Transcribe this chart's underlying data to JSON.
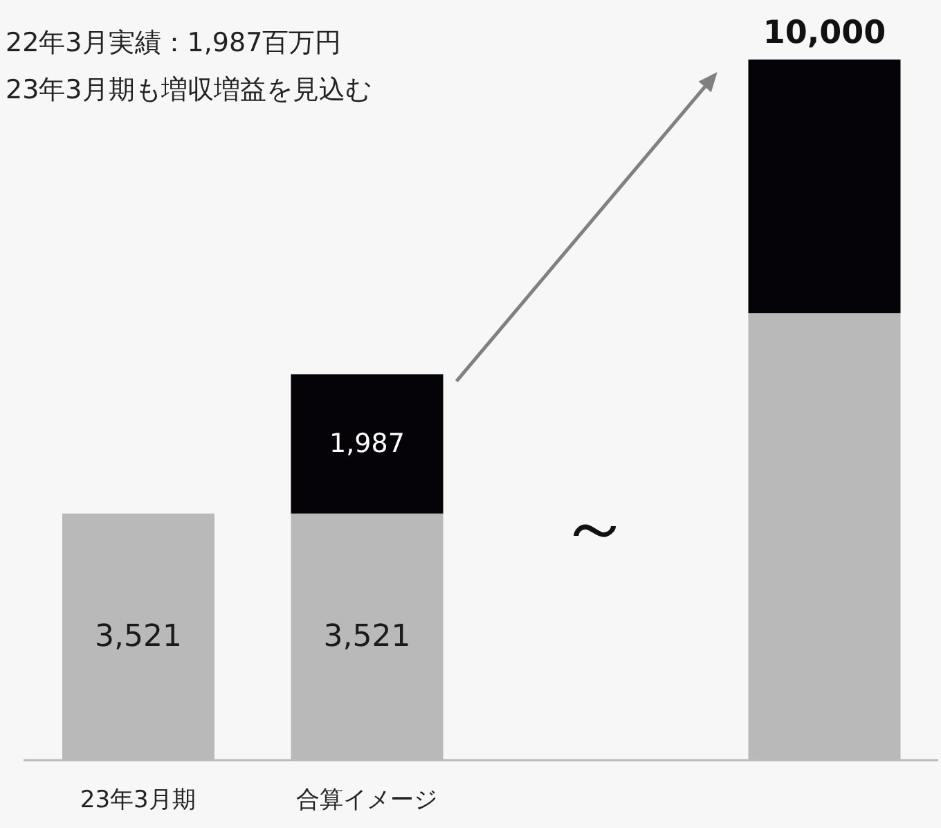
{
  "chart_data": {
    "type": "bar",
    "stacked": true,
    "categories": [
      "23年3月期",
      "合算イメージ",
      null,
      null
    ],
    "series": [
      {
        "color": "#b9b9b9",
        "values": [
          3521,
          3521,
          null,
          6380
        ],
        "value_labels": [
          "3,521",
          "3,521",
          null,
          null
        ]
      },
      {
        "color": "#050308",
        "values": [
          null,
          1987,
          null,
          3620
        ],
        "value_labels": [
          null,
          "1,987",
          null,
          null
        ]
      }
    ],
    "totals": [
      null,
      null,
      null,
      "10,000"
    ],
    "annotations": [
      "22年3月実績：1,987百万円",
      "23年3月期も増収増益を見込む",
      "～"
    ],
    "legend": false,
    "grid": false,
    "tick_labels": "x"
  }
}
